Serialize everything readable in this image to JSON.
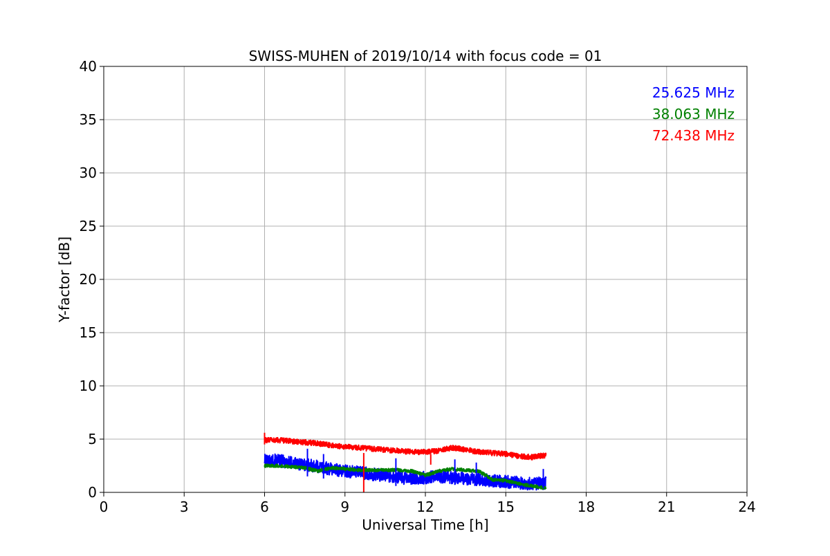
{
  "chart_data": {
    "type": "line",
    "title": "SWISS-MUHEN of 2019/10/14 with focus code = 01",
    "xlabel": "Universal Time [h]",
    "ylabel": "Y-factor [dB]",
    "xlim": [
      0,
      24
    ],
    "ylim": [
      0,
      40
    ],
    "xticks": [
      0,
      3,
      6,
      9,
      12,
      15,
      18,
      21,
      24
    ],
    "yticks": [
      0,
      5,
      10,
      15,
      20,
      25,
      30,
      35,
      40
    ],
    "grid": true,
    "legend_position": "top-right",
    "series": [
      {
        "name": "25.625 MHz",
        "color": "#0000ff",
        "noise_amplitude": 0.6,
        "points": [
          [
            6.0,
            3.0
          ],
          [
            6.5,
            3.0
          ],
          [
            7.0,
            2.8
          ],
          [
            7.5,
            2.6
          ],
          [
            8.0,
            2.4
          ],
          [
            8.5,
            2.2
          ],
          [
            9.0,
            2.0
          ],
          [
            9.5,
            1.9
          ],
          [
            10.0,
            1.7
          ],
          [
            10.5,
            1.6
          ],
          [
            11.0,
            1.4
          ],
          [
            11.5,
            1.3
          ],
          [
            12.0,
            1.4
          ],
          [
            12.5,
            1.5
          ],
          [
            13.0,
            1.4
          ],
          [
            13.5,
            1.3
          ],
          [
            14.0,
            1.2
          ],
          [
            14.5,
            1.1
          ],
          [
            15.0,
            1.0
          ],
          [
            15.5,
            0.9
          ],
          [
            16.0,
            0.8
          ],
          [
            16.5,
            0.9
          ]
        ]
      },
      {
        "name": "38.063 MHz",
        "color": "#008000",
        "noise_amplitude": 0.15,
        "points": [
          [
            6.0,
            2.5
          ],
          [
            6.5,
            2.5
          ],
          [
            7.0,
            2.4
          ],
          [
            7.5,
            2.3
          ],
          [
            8.0,
            2.0
          ],
          [
            8.5,
            2.3
          ],
          [
            9.0,
            2.2
          ],
          [
            9.5,
            2.1
          ],
          [
            10.0,
            2.1
          ],
          [
            10.5,
            2.1
          ],
          [
            11.0,
            2.1
          ],
          [
            11.5,
            2.0
          ],
          [
            12.0,
            1.6
          ],
          [
            12.5,
            2.0
          ],
          [
            13.0,
            2.2
          ],
          [
            13.5,
            2.1
          ],
          [
            14.0,
            2.0
          ],
          [
            14.5,
            1.2
          ],
          [
            15.0,
            1.1
          ],
          [
            15.5,
            0.8
          ],
          [
            16.0,
            0.6
          ],
          [
            16.5,
            0.4
          ]
        ]
      },
      {
        "name": "72.438 MHz",
        "color": "#ff0000",
        "noise_amplitude": 0.25,
        "points": [
          [
            6.0,
            4.9
          ],
          [
            6.5,
            4.9
          ],
          [
            7.0,
            4.8
          ],
          [
            7.5,
            4.7
          ],
          [
            8.0,
            4.6
          ],
          [
            8.5,
            4.4
          ],
          [
            9.0,
            4.3
          ],
          [
            9.5,
            4.2
          ],
          [
            10.0,
            4.1
          ],
          [
            10.5,
            4.0
          ],
          [
            11.0,
            3.9
          ],
          [
            11.5,
            3.8
          ],
          [
            12.0,
            3.8
          ],
          [
            12.5,
            3.9
          ],
          [
            13.0,
            4.2
          ],
          [
            13.5,
            4.0
          ],
          [
            14.0,
            3.8
          ],
          [
            14.5,
            3.7
          ],
          [
            15.0,
            3.6
          ],
          [
            15.5,
            3.4
          ],
          [
            16.0,
            3.3
          ],
          [
            16.5,
            3.5
          ]
        ]
      }
    ],
    "spikes": [
      {
        "series": 2,
        "x": 9.7,
        "y_from": 0,
        "y_to": 3.7
      },
      {
        "series": 2,
        "x": 12.2,
        "y_from": 2.6,
        "y_to": 3.6
      },
      {
        "series": 2,
        "x": 6.0,
        "y_from": 4.5,
        "y_to": 5.6
      },
      {
        "series": 0,
        "x": 7.6,
        "y_from": 1.5,
        "y_to": 4.1
      },
      {
        "series": 0,
        "x": 8.2,
        "y_from": 1.3,
        "y_to": 3.6
      },
      {
        "series": 0,
        "x": 10.9,
        "y_from": 0.6,
        "y_to": 3.2
      },
      {
        "series": 0,
        "x": 13.1,
        "y_from": 0.7,
        "y_to": 3.1
      },
      {
        "series": 0,
        "x": 13.9,
        "y_from": 0.6,
        "y_to": 2.8
      },
      {
        "series": 0,
        "x": 16.4,
        "y_from": 0.4,
        "y_to": 2.2
      }
    ]
  }
}
